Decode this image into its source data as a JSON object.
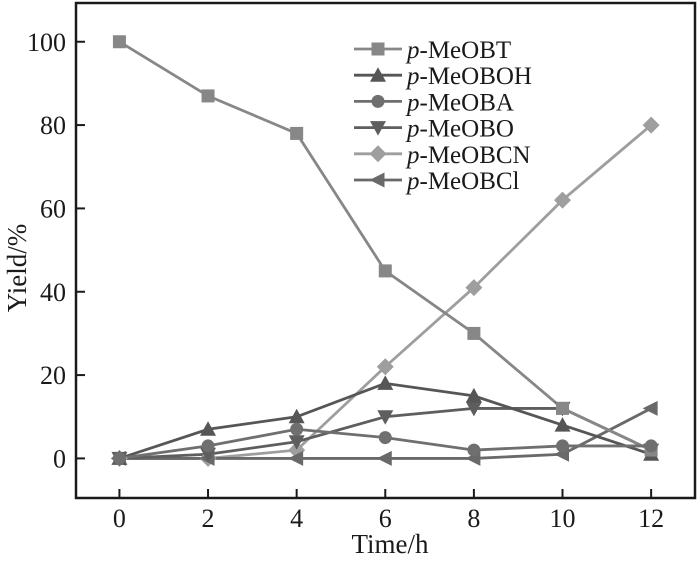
{
  "figure": {
    "background": "#ffffff",
    "axis_color": "#1a1a1a"
  },
  "chart_data": {
    "type": "line",
    "title": "",
    "xlabel": "Time/h",
    "ylabel": "Yield/%",
    "x_ticks": [
      0,
      2,
      4,
      6,
      8,
      10,
      12
    ],
    "y_ticks": [
      0,
      20,
      40,
      60,
      80,
      100
    ],
    "xlim": [
      -0.98,
      12.99
    ],
    "ylim": [
      -9.5,
      109.3
    ],
    "grid": false,
    "legend_position": "upper-center-inside",
    "x": [
      0,
      2,
      4,
      6,
      8,
      10,
      12
    ],
    "series": [
      {
        "name": "p-MeOBT",
        "marker": "square",
        "color": "#878787",
        "values": [
          100,
          87,
          78,
          45,
          30,
          12,
          2
        ]
      },
      {
        "name": "p-MeOBOH",
        "marker": "triangle-up",
        "color": "#565656",
        "values": [
          0,
          7,
          10,
          18,
          15,
          8,
          1
        ]
      },
      {
        "name": "p-MeOBA",
        "marker": "circle",
        "color": "#6f6f6f",
        "values": [
          0,
          3,
          7,
          5,
          2,
          3,
          3
        ]
      },
      {
        "name": "p-MeOBO",
        "marker": "triangle-down",
        "color": "#5e5e5e",
        "values": [
          0,
          1,
          4,
          10,
          12,
          12,
          2
        ]
      },
      {
        "name": "p-MeOBCN",
        "marker": "diamond",
        "color": "#9e9e9e",
        "values": [
          0,
          0,
          2,
          22,
          41,
          62,
          80
        ]
      },
      {
        "name": "p-MeOBCl",
        "marker": "triangle-left",
        "color": "#696969",
        "values": [
          0,
          0,
          0,
          0,
          0,
          1,
          12
        ]
      }
    ]
  }
}
